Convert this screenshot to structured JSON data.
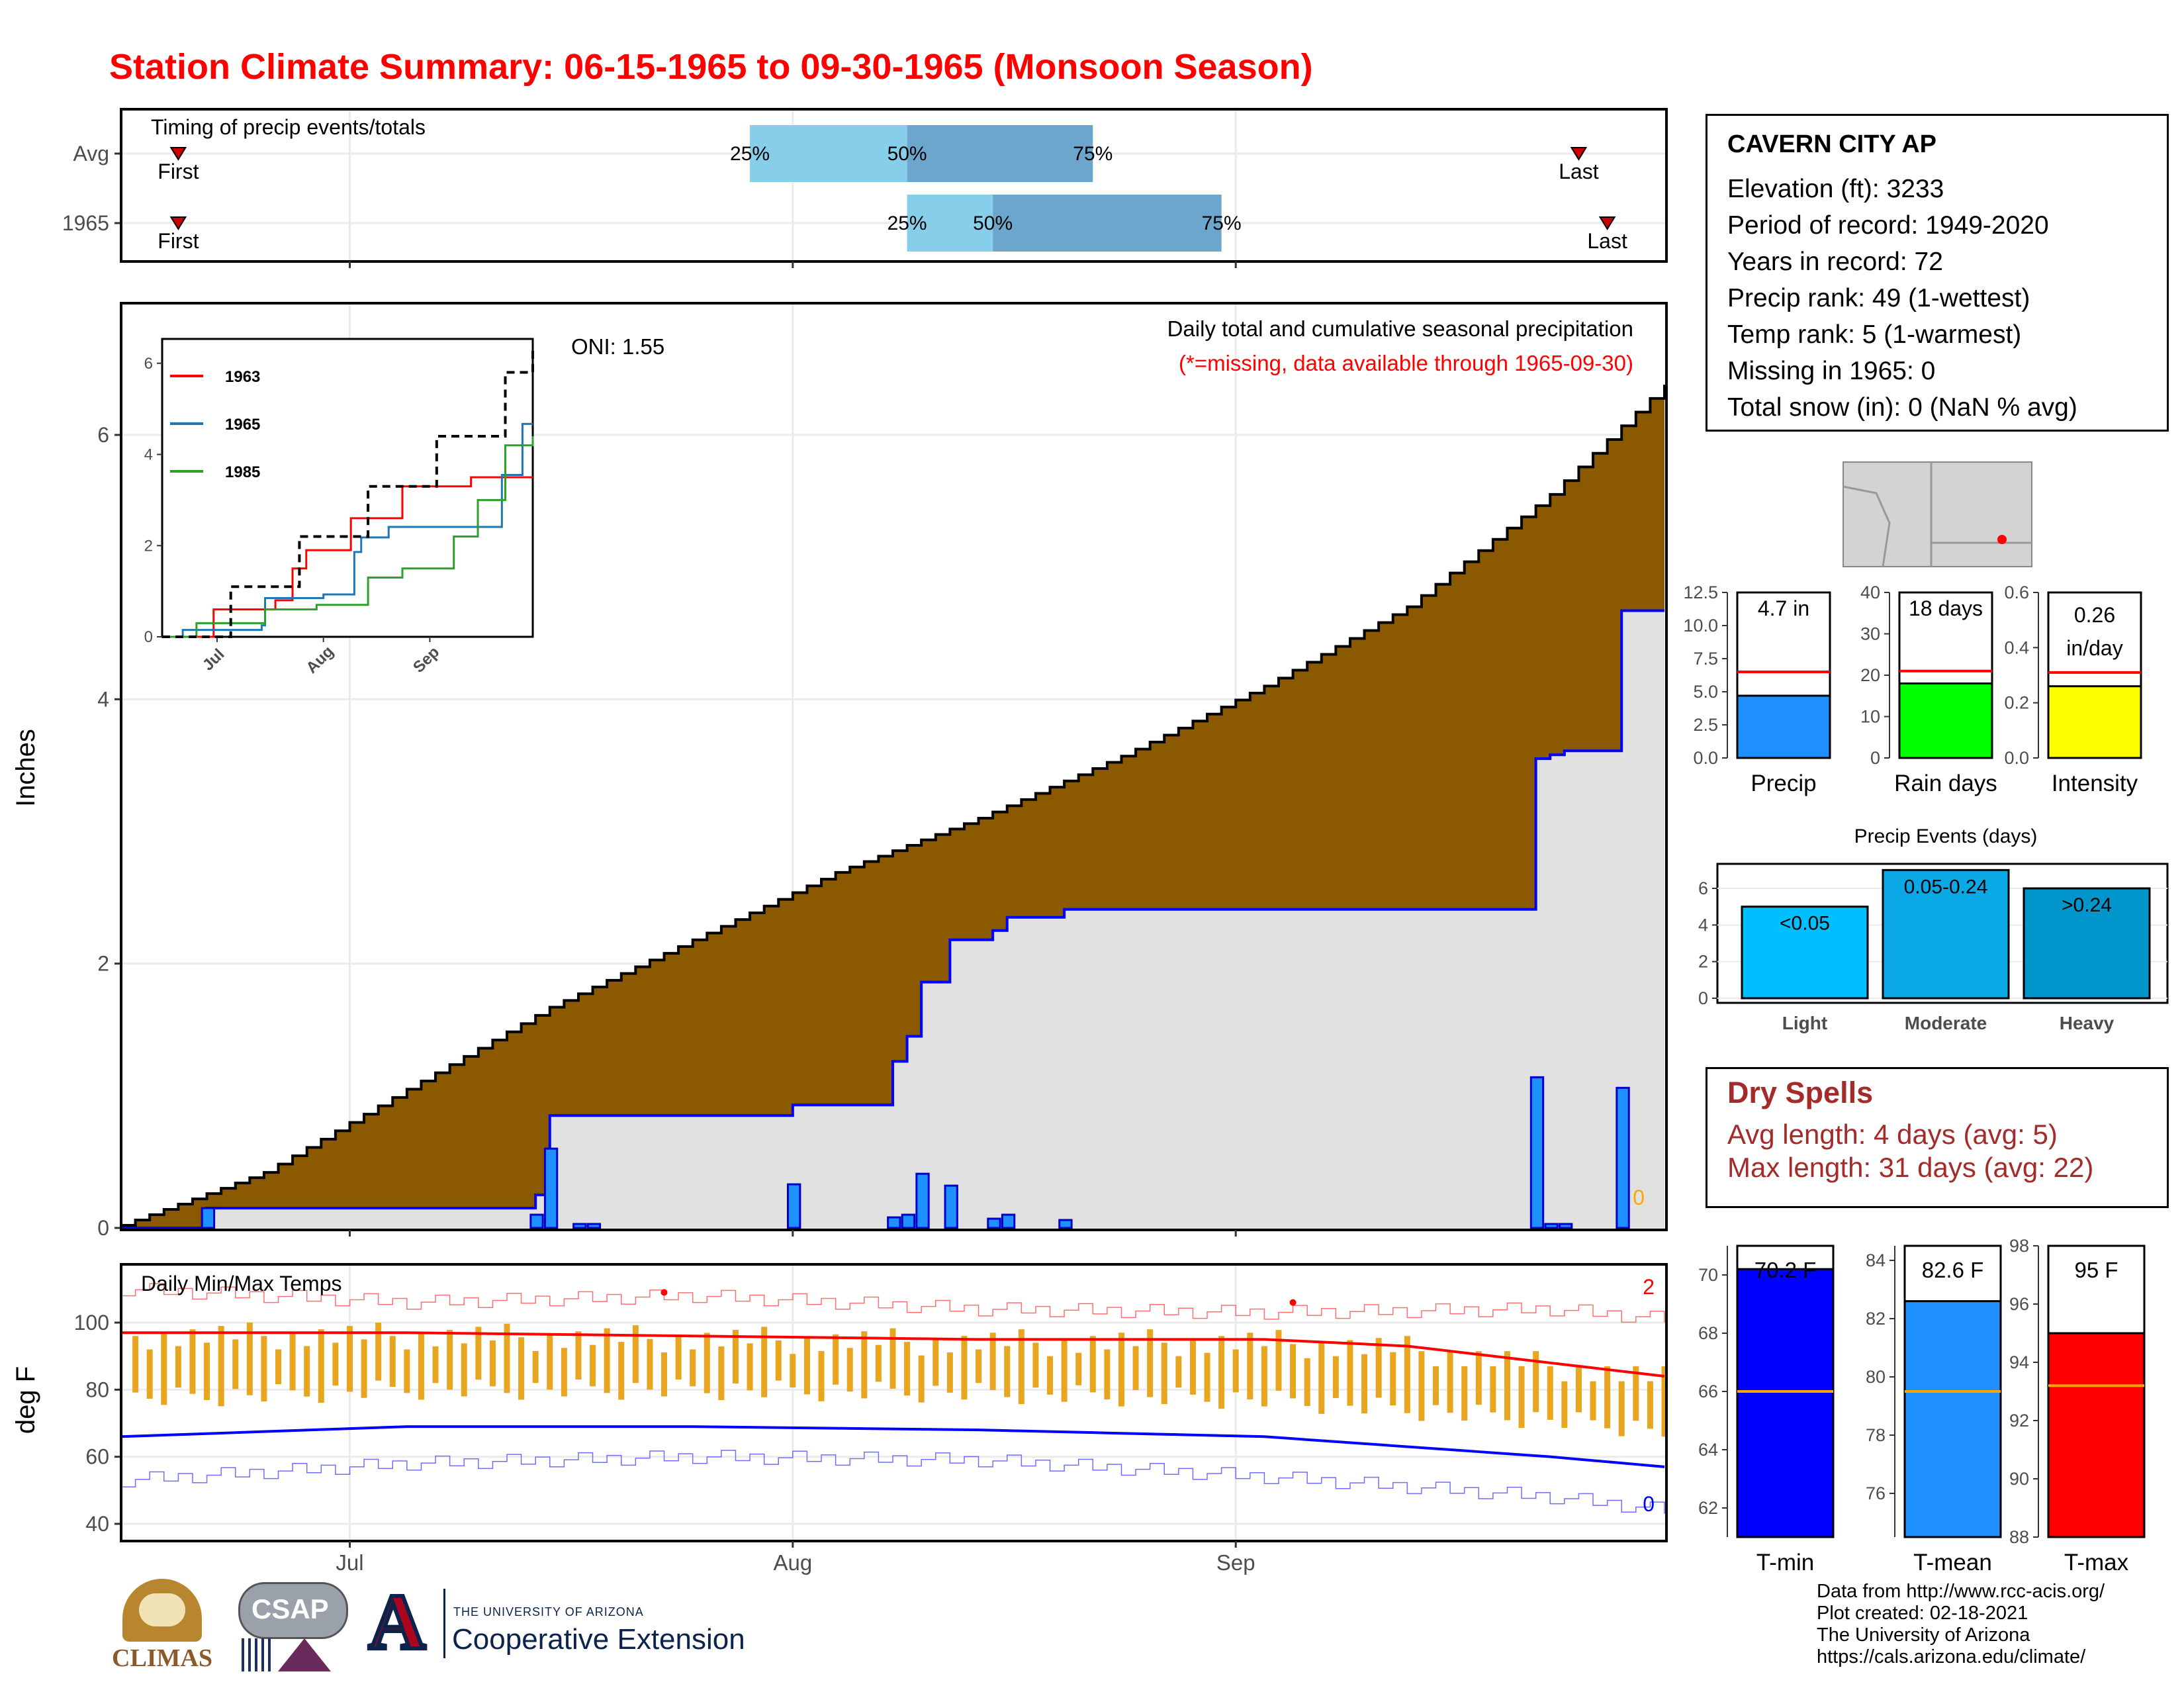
{
  "title": "Station Climate Summary: 06-15-1965 to 09-30-1965 (Monsoon Season)",
  "colors": {
    "title": "#ff0000",
    "precip_fill": "#8b5a00",
    "avg_fill": "#e1e1e1",
    "bar": "#1e90ff",
    "tmax": "#ff0000",
    "tmin": "#0000ff",
    "range": "#e8a520"
  },
  "timing": {
    "label": "Timing of precip events/totals",
    "rows": [
      {
        "name": "Avg",
        "first_label": "First",
        "last_label": "Last",
        "p25": "25%",
        "p50": "50%",
        "p75": "75%"
      },
      {
        "name": "1965",
        "first_label": "First",
        "last_label": "Last",
        "p25": "25%",
        "p50": "50%",
        "p75": "75%"
      }
    ]
  },
  "station": {
    "name": "CAVERN CITY AP",
    "lines": [
      "Elevation (ft): 3233",
      "Period of record: 1949-2020",
      "Years in record: 72",
      "Precip rank: 49 (1-wettest)",
      "Temp rank: 5 (1-warmest)",
      "Missing in 1965: 0",
      "Total snow (in): 0 (NaN % avg)"
    ]
  },
  "main_precip": {
    "ylabel": "Inches",
    "oni": "ONI: 1.55",
    "title": "Daily total and cumulative seasonal precipitation",
    "subtitle": "(*=missing, data available through 1965-09-30)",
    "missing_count": "0",
    "y_ticks": [
      "0",
      "2",
      "4",
      "6"
    ],
    "x_ticks": [
      "Jul",
      "Aug",
      "Sep"
    ]
  },
  "inset": {
    "legend": [
      "1963",
      "1965",
      "1985"
    ],
    "y_ticks": [
      "0",
      "2",
      "4",
      "6"
    ],
    "x_ticks": [
      "Jul",
      "Aug",
      "Sep"
    ]
  },
  "mini_bars": [
    {
      "label": "Precip",
      "value_text": "4.7 in",
      "value": 4.7,
      "avg": 6.5,
      "ymax": 12.5,
      "ticks": [
        "0.0",
        "2.5",
        "5.0",
        "7.5",
        "10.0",
        "12.5"
      ],
      "tickvals": [
        0,
        2.5,
        5,
        7.5,
        10,
        12.5
      ],
      "color": "#1e90ff"
    },
    {
      "label": "Rain days",
      "value_text": "18 days",
      "value": 18,
      "avg": 21,
      "ymax": 40,
      "ticks": [
        "0",
        "10",
        "20",
        "30",
        "40"
      ],
      "tickvals": [
        0,
        10,
        20,
        30,
        40
      ],
      "color": "#00ff00"
    },
    {
      "label": "Intensity",
      "value_text": "0.26 in/day",
      "value": 0.26,
      "avg": 0.31,
      "ymax": 0.6,
      "ticks": [
        "0.0",
        "0.2",
        "0.4",
        "0.6"
      ],
      "tickvals": [
        0,
        0.2,
        0.4,
        0.6
      ],
      "color": "#ffff00"
    }
  ],
  "precip_events": {
    "title": "Precip Events (days)",
    "ticks": [
      "0",
      "2",
      "4",
      "6"
    ],
    "bars": [
      {
        "label": "Light",
        "range": "<0.05",
        "value": 5,
        "color": "#00bfff"
      },
      {
        "label": "Moderate",
        "range": "0.05-0.24",
        "value": 7,
        "color": "#0aa9e6"
      },
      {
        "label": "Heavy",
        "range": ">0.24",
        "value": 6,
        "color": "#0096cc"
      }
    ]
  },
  "dry_spells": {
    "title": "Dry Spells",
    "avg": "Avg length: 4 days (avg: 5)",
    "max": "Max length: 31 days (avg: 22)"
  },
  "temps": {
    "label": "Daily Min/Max Temps",
    "ylabel": "deg F",
    "y_ticks": [
      "40",
      "60",
      "80",
      "100"
    ],
    "high_count": "2",
    "low_count": "0"
  },
  "temp_bars": [
    {
      "label": "T-min",
      "value_text": "70.2 F",
      "value": 70.2,
      "avg": 66,
      "ymin": 61,
      "ymax": 71,
      "ticks": [
        "62",
        "64",
        "66",
        "68",
        "70"
      ],
      "tickvals": [
        62,
        64,
        66,
        68,
        70
      ],
      "color": "#0000ff"
    },
    {
      "label": "T-mean",
      "value_text": "82.6 F",
      "value": 82.6,
      "avg": 79.5,
      "ymin": 74.5,
      "ymax": 84.5,
      "ticks": [
        "76",
        "78",
        "80",
        "82",
        "84"
      ],
      "tickvals": [
        76,
        78,
        80,
        82,
        84
      ],
      "color": "#1e90ff"
    },
    {
      "label": "T-max",
      "value_text": "95 F",
      "value": 95,
      "avg": 93.2,
      "ymin": 88,
      "ymax": 98,
      "ticks": [
        "88",
        "90",
        "92",
        "94",
        "96",
        "98"
      ],
      "tickvals": [
        88,
        90,
        92,
        94,
        96,
        98
      ],
      "color": "#ff0000"
    }
  ],
  "credits": [
    "Data from http://www.rcc-acis.org/",
    "Plot created: 02-18-2021",
    "The University of Arizona",
    "https://cals.arizona.edu/climate/"
  ],
  "logos": {
    "climas": "CLIMAS",
    "csap": "CSAP",
    "ua_small": "THE UNIVERSITY OF ARIZONA",
    "ua_large": "Cooperative Extension"
  },
  "chart_data": [
    {
      "type": "bar",
      "title": "Timing of precip events/totals",
      "series": [
        {
          "name": "Avg",
          "first": "06-19",
          "p25": "07-29",
          "p50": "08-09",
          "p75": "08-22",
          "last": "09-25"
        },
        {
          "name": "1965",
          "first": "06-19",
          "p25": "08-09",
          "p50": "08-15",
          "p75": "08-31",
          "last": "09-27"
        }
      ]
    },
    {
      "type": "area",
      "title": "Daily total and cumulative seasonal precipitation",
      "ylabel": "Inches",
      "ylim": [
        0,
        6.9
      ],
      "x_range": [
        "06-15",
        "09-30"
      ],
      "series": [
        {
          "name": "daily",
          "x": [
            6,
            29,
            30,
            32,
            33,
            47,
            54,
            55,
            56,
            58,
            61,
            62,
            66,
            99,
            100,
            101,
            105
          ],
          "values": [
            0.15,
            0.1,
            0.6,
            0.03,
            0.03,
            0.33,
            0.08,
            0.1,
            0.41,
            0.32,
            0.07,
            0.1,
            0.06,
            1.14,
            0.03,
            0.03,
            1.06
          ]
        },
        {
          "name": "cumulative",
          "x": [
            0,
            6,
            29,
            30,
            47,
            54,
            55,
            56,
            58,
            61,
            62,
            66,
            99,
            100,
            101,
            105,
            108
          ],
          "values": [
            0,
            0.15,
            0.25,
            0.85,
            0.93,
            1.26,
            1.45,
            1.86,
            2.18,
            2.25,
            2.35,
            2.41,
            3.55,
            3.58,
            3.61,
            4.67,
            4.67
          ]
        },
        {
          "name": "average_cumulative",
          "x": [
            0,
            10,
            20,
            30,
            40,
            50,
            60,
            70,
            80,
            90,
            100,
            108
          ],
          "values": [
            0.02,
            0.42,
            1.05,
            1.67,
            2.18,
            2.69,
            3.1,
            3.57,
            4.1,
            4.7,
            5.55,
            6.38
          ]
        }
      ]
    },
    {
      "type": "line",
      "title": "",
      "x_ticks": [
        "Jul",
        "Aug",
        "Sep"
      ],
      "ylim": [
        0,
        6.2
      ],
      "series": [
        {
          "name": "1963",
          "x": [
            0,
            15,
            25,
            33,
            38,
            42,
            55,
            70,
            90,
            108
          ],
          "values": [
            0,
            0.6,
            0.6,
            0.8,
            1.5,
            1.9,
            2.6,
            3.3,
            3.5,
            3.5
          ]
        },
        {
          "name": "1965",
          "x": [
            0,
            6,
            29,
            30,
            47,
            56,
            58,
            66,
            99,
            105,
            108
          ],
          "values": [
            0,
            0.15,
            0.25,
            0.85,
            0.93,
            1.86,
            2.18,
            2.41,
            3.55,
            4.67,
            4.67
          ]
        },
        {
          "name": "1985",
          "x": [
            0,
            10,
            30,
            45,
            60,
            70,
            85,
            92,
            100,
            108
          ],
          "values": [
            0,
            0.3,
            0.6,
            0.7,
            1.3,
            1.5,
            2.2,
            3.0,
            4.2,
            4.4
          ]
        },
        {
          "name": "",
          "x": [
            0,
            20,
            40,
            60,
            80,
            100,
            108
          ],
          "values": [
            0,
            1.1,
            2.2,
            3.3,
            4.4,
            5.8,
            6.3
          ]
        }
      ]
    },
    {
      "type": "line",
      "title": "Daily Min/Max Temps",
      "ylabel": "deg F",
      "ylim": [
        36,
        116
      ],
      "series": [
        {
          "name": "avg_tmax",
          "x": [
            0,
            20,
            40,
            60,
            80,
            90,
            100,
            108
          ],
          "values": [
            97,
            97,
            96,
            95,
            95,
            93,
            88,
            84
          ]
        },
        {
          "name": "avg_tmin",
          "x": [
            0,
            20,
            40,
            60,
            80,
            90,
            100,
            108
          ],
          "values": [
            66,
            69,
            69,
            68,
            66,
            63,
            60,
            57
          ]
        },
        {
          "name": "record_high",
          "x": [
            0,
            20,
            40,
            60,
            80,
            100,
            108
          ],
          "values": [
            110,
            106,
            108,
            104,
            103,
            104,
            101
          ]
        },
        {
          "name": "record_low",
          "x": [
            0,
            20,
            40,
            60,
            80,
            100,
            108
          ],
          "values": [
            53,
            58,
            60,
            59,
            54,
            48,
            44
          ]
        }
      ]
    },
    {
      "type": "bar",
      "title": "",
      "categories": [
        "Precip",
        "Rain days",
        "Intensity"
      ],
      "values": [
        4.7,
        18,
        0.26
      ]
    },
    {
      "type": "bar",
      "title": "Precip Events (days)",
      "categories": [
        "Light",
        "Moderate",
        "Heavy"
      ],
      "values": [
        5,
        7,
        6
      ]
    },
    {
      "type": "bar",
      "title": "",
      "categories": [
        "T-min",
        "T-mean",
        "T-max"
      ],
      "values": [
        70.2,
        82.6,
        95
      ]
    }
  ]
}
